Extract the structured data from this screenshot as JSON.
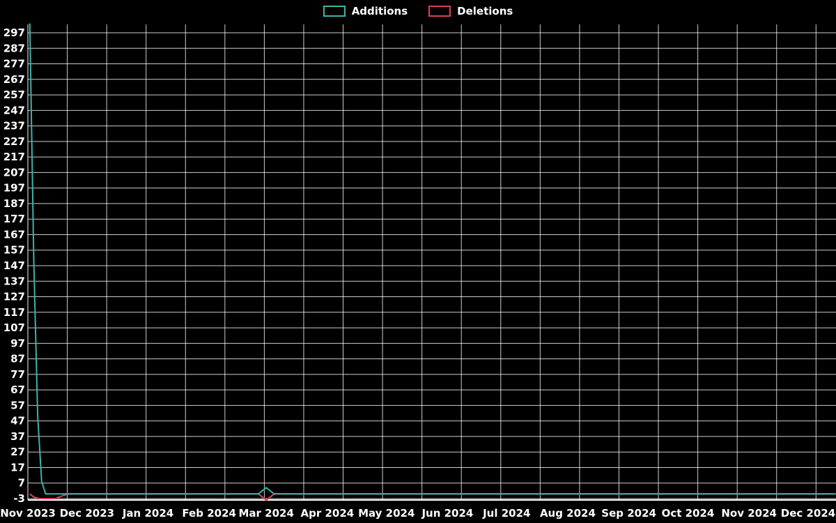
{
  "legend": {
    "items": [
      {
        "label": "Additions",
        "color": "#3cb4aa"
      },
      {
        "label": "Deletions",
        "color": "#dc4053"
      }
    ]
  },
  "chart_data": {
    "type": "line",
    "title": "",
    "background": "#000000",
    "grid_color": "rgba(255,255,255,0.8)",
    "axis_color": "#ffffff",
    "text_color": "#ffffff",
    "legend_position": "top-center",
    "grid": true,
    "x_axis": {
      "unit": "date",
      "tick_labels": [
        "Nov 2023",
        "Dec 2023",
        "Jan 2024",
        "Feb 2024",
        "Mar 2024",
        "Apr 2024",
        "May 2024",
        "Jun 2024",
        "Jul 2024",
        "Aug 2024",
        "Sep 2024",
        "Oct 2024",
        "Nov 2024",
        "Dec 2024"
      ],
      "tick_day_offsets": [
        0,
        30,
        61,
        92,
        121,
        152,
        182,
        213,
        243,
        274,
        305,
        335,
        366,
        396
      ],
      "grid_interval_days": 20,
      "range_days": [
        0,
        410
      ]
    },
    "y_axis": {
      "min": -3,
      "max": 297,
      "tick_step": 10,
      "ticks": [
        -3,
        7,
        17,
        27,
        37,
        47,
        57,
        67,
        77,
        87,
        97,
        107,
        117,
        127,
        137,
        147,
        157,
        167,
        177,
        187,
        197,
        207,
        217,
        227,
        237,
        247,
        257,
        267,
        277,
        287,
        297
      ]
    },
    "series": [
      {
        "name": "Additions",
        "color": "#3cb4aa",
        "points_day_value": [
          [
            1,
            303
          ],
          [
            3,
            150
          ],
          [
            5,
            50
          ],
          [
            7,
            8
          ],
          [
            9,
            0
          ],
          [
            117,
            0
          ],
          [
            121,
            4
          ],
          [
            125,
            0
          ],
          [
            410,
            0
          ]
        ]
      },
      {
        "name": "Deletions",
        "color": "#dc4053",
        "points_day_value": [
          [
            1,
            0
          ],
          [
            3,
            -2
          ],
          [
            6,
            -3
          ],
          [
            14,
            -3
          ],
          [
            18,
            -1
          ],
          [
            21,
            0
          ],
          [
            117,
            0
          ],
          [
            121,
            -4
          ],
          [
            125,
            0
          ],
          [
            410,
            0
          ]
        ]
      }
    ]
  }
}
